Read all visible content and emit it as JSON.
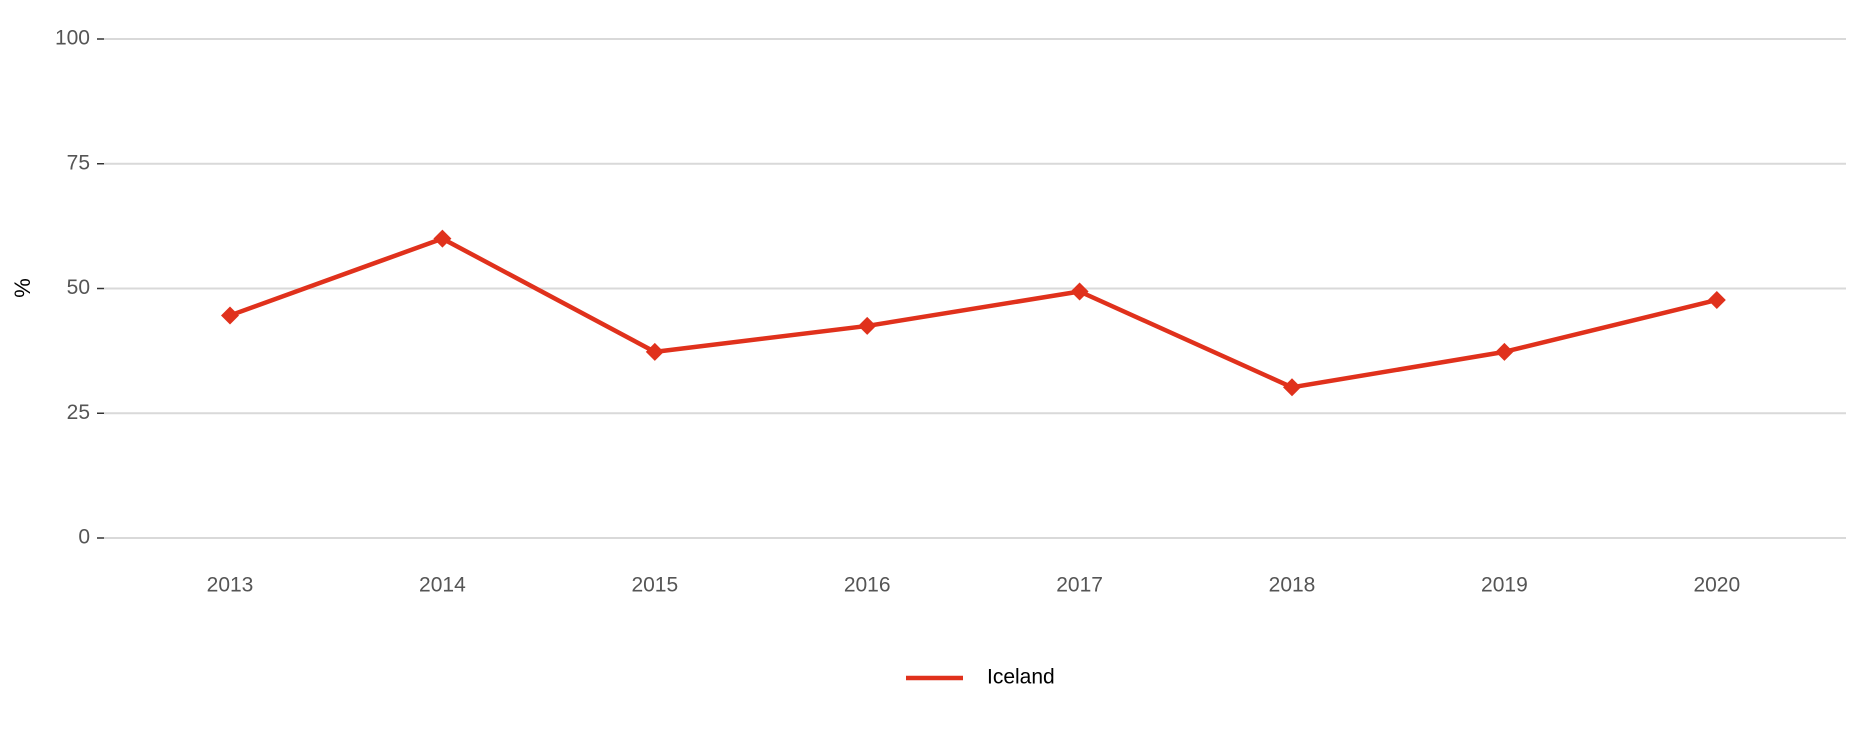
{
  "chart_data": {
    "type": "line",
    "y_label": "%",
    "categories": [
      "2013",
      "2014",
      "2015",
      "2016",
      "2017",
      "2018",
      "2019",
      "2020"
    ],
    "series": [
      {
        "name": "Iceland",
        "color": "#e0311c",
        "values": [
          44.6,
          60,
          37.3,
          42.5,
          49.4,
          30.2,
          37.3,
          47.7
        ]
      }
    ],
    "ylim": [
      0,
      100
    ],
    "yticks": [
      0,
      25,
      50,
      75,
      100
    ],
    "grid": true,
    "legend": "bottom"
  }
}
